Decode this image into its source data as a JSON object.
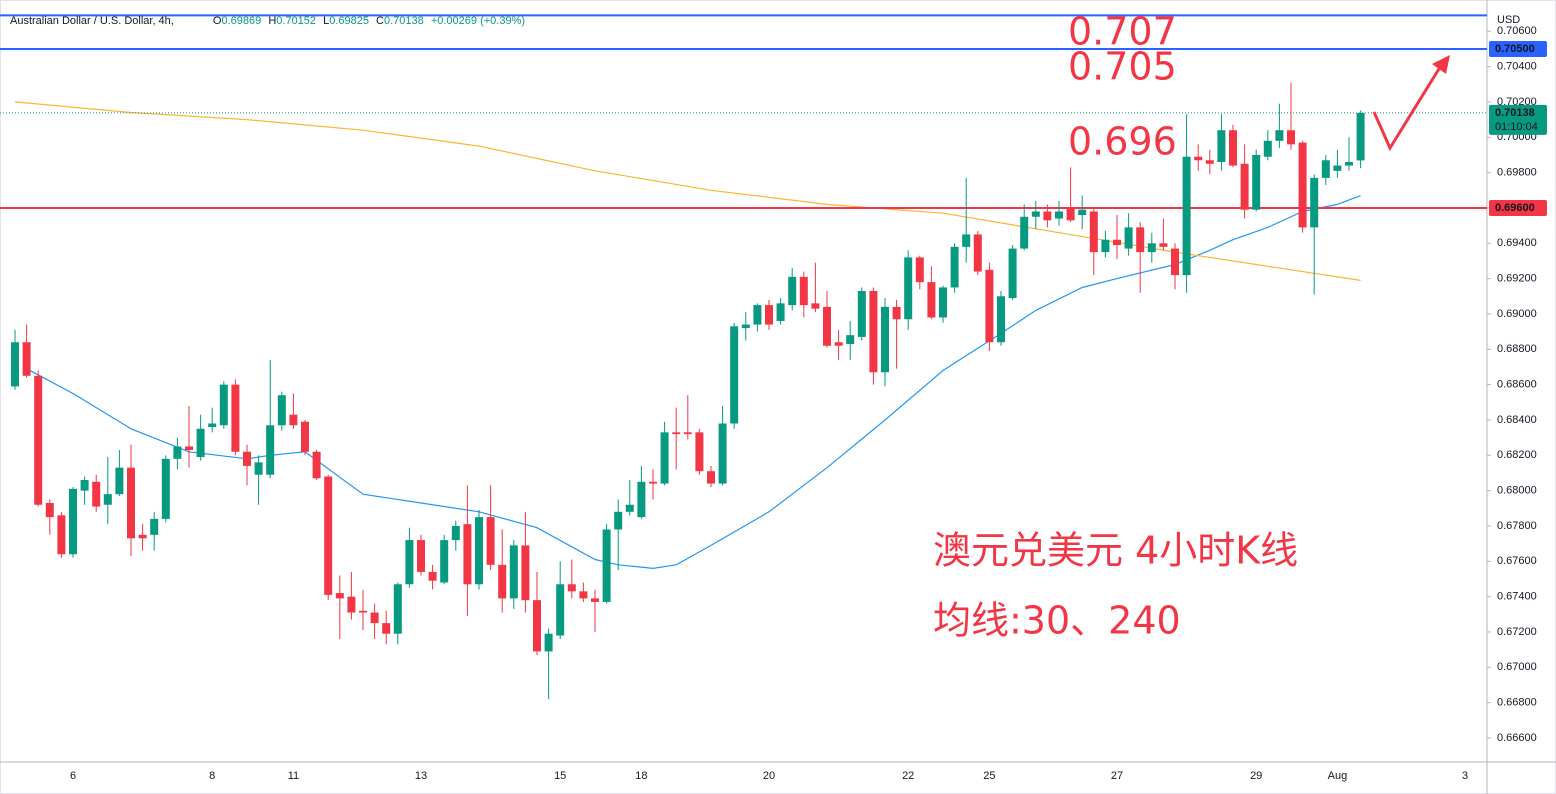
{
  "chart_data": {
    "type": "candlestick",
    "symbol": "Australian Dollar / U.S. Dollar, 4h,",
    "ohlc_labels": [
      "O",
      "H",
      "L",
      "C"
    ],
    "change": "+0.00269 (+0.39%)",
    "currency": "USD",
    "annotations": [
      "0.707",
      "0.705",
      "0.696",
      "澳元兑美元 4小时K线",
      "均线:30、240"
    ],
    "up_color": "#089981",
    "down_color": "#f23645",
    "categories": [
      null,
      null,
      null,
      null,
      null,
      "6",
      null,
      null,
      null,
      null,
      null,
      null,
      null,
      null,
      null,
      null,
      null,
      "8",
      null,
      null,
      null,
      null,
      null,
      null,
      "11",
      null,
      null,
      null,
      null,
      null,
      null,
      null,
      null,
      null,
      null,
      "13",
      null,
      null,
      null,
      null,
      null,
      null,
      null,
      null,
      null,
      null,
      null,
      "15",
      null,
      null,
      null,
      null,
      null,
      null,
      "18",
      null,
      null,
      null,
      null,
      null,
      null,
      null,
      null,
      null,
      null,
      "20",
      null,
      null,
      null,
      null,
      null,
      null,
      null,
      null,
      null,
      null,
      null,
      "22",
      null,
      null,
      null,
      null,
      null,
      null,
      "25",
      null,
      null,
      null,
      null,
      null,
      null,
      null,
      null,
      null,
      null,
      "27",
      null,
      null,
      null,
      null,
      null,
      null,
      null,
      null,
      null,
      null,
      null,
      "29",
      null,
      null,
      null,
      null,
      null,
      null,
      "Aug",
      null,
      null,
      null,
      null,
      null,
      null,
      null,
      null,
      null,
      null,
      "3"
    ],
    "open": [
      0.6859,
      0.6884,
      0.6865,
      0.6793,
      0.6786,
      0.6764,
      0.68,
      0.6805,
      0.6792,
      0.6798,
      0.6813,
      0.6775,
      0.6775,
      0.6784,
      0.6818,
      0.6825,
      0.6819,
      0.6836,
      0.6837,
      0.686,
      0.6822,
      0.6809,
      0.6809,
      0.6837,
      0.6843,
      0.6839,
      0.6822,
      0.6808,
      0.6742,
      0.674,
      0.6732,
      0.6731,
      0.6725,
      0.6719,
      0.6747,
      0.6772,
      0.6754,
      0.6748,
      0.6772,
      0.6781,
      0.6747,
      0.6785,
      0.6758,
      0.6739,
      0.6769,
      0.6738,
      0.6709,
      0.6718,
      0.6747,
      0.6743,
      0.6739,
      0.6737,
      0.6778,
      0.6788,
      0.6785,
      0.6805,
      0.6804,
      0.6833,
      0.6833,
      0.6833,
      0.6811,
      0.6804,
      0.6838,
      0.6892,
      0.6894,
      0.6905,
      0.6896,
      0.6905,
      0.6921,
      0.6906,
      0.6904,
      0.6884,
      0.6883,
      0.6887,
      0.6913,
      0.6867,
      0.6904,
      0.6897,
      0.6932,
      0.6918,
      0.6898,
      0.6915,
      0.6938,
      0.6945,
      0.6925,
      0.6884,
      0.6909,
      0.6937,
      0.6955,
      0.6958,
      0.6954,
      0.696,
      0.6956,
      0.6958,
      0.6935,
      0.6942,
      0.6937,
      0.6949,
      0.6935,
      0.694,
      0.6937,
      0.6922,
      0.6989,
      0.6987,
      0.6986,
      0.7004,
      0.6985,
      0.6959,
      0.6989,
      0.6998,
      0.7004,
      0.6997,
      0.6949,
      0.6977,
      0.6981,
      0.6984,
      0.69869,
      null,
      null,
      null,
      null,
      null,
      null,
      null,
      null,
      null
    ],
    "high": [
      0.6891,
      0.6894,
      0.6868,
      0.6795,
      0.6788,
      0.6802,
      0.6808,
      0.6809,
      0.6819,
      0.6823,
      0.6826,
      0.6781,
      0.6788,
      0.682,
      0.683,
      0.6848,
      0.6843,
      0.6847,
      0.6862,
      0.6863,
      0.6826,
      0.682,
      0.6874,
      0.6856,
      0.6855,
      0.684,
      0.6823,
      0.6809,
      0.6752,
      0.6754,
      0.6744,
      0.6736,
      0.6732,
      0.6748,
      0.6779,
      0.6775,
      0.6758,
      0.6775,
      0.6783,
      0.6803,
      0.6789,
      0.6803,
      0.6778,
      0.6772,
      0.6788,
      0.6754,
      0.6722,
      0.676,
      0.6761,
      0.6748,
      0.6744,
      0.6781,
      0.6795,
      0.6806,
      0.6814,
      0.6812,
      0.6839,
      0.6847,
      0.6854,
      0.6835,
      0.6814,
      0.6848,
      0.6895,
      0.6901,
      0.6906,
      0.6908,
      0.6909,
      0.6926,
      0.6924,
      0.6929,
      0.6913,
      0.6891,
      0.6896,
      0.6915,
      0.6915,
      0.6909,
      0.6908,
      0.6936,
      0.6933,
      0.6927,
      0.6916,
      0.694,
      0.6977,
      0.6947,
      0.6929,
      0.6913,
      0.6939,
      0.6962,
      0.6964,
      0.6962,
      0.6964,
      0.6983,
      0.6967,
      0.696,
      0.6947,
      0.6956,
      0.6957,
      0.6952,
      0.6946,
      0.6954,
      0.694,
      0.7013,
      0.6996,
      0.6993,
      0.7013,
      0.7007,
      0.6996,
      0.6993,
      0.7004,
      0.7019,
      0.7031,
      0.6998,
      0.6979,
      0.699,
      0.6993,
      0.7,
      0.70152,
      null,
      null,
      null,
      null,
      null,
      null,
      null,
      null,
      null
    ],
    "low": [
      0.6857,
      0.6864,
      0.6791,
      0.6775,
      0.6762,
      0.6762,
      0.6792,
      0.6788,
      0.6781,
      0.6797,
      0.6763,
      0.6766,
      0.6766,
      0.6782,
      0.6812,
      0.6813,
      0.6817,
      0.6833,
      0.6835,
      0.682,
      0.6803,
      0.6792,
      0.6807,
      0.6834,
      0.6835,
      0.682,
      0.6806,
      0.6738,
      0.6716,
      0.6727,
      0.6721,
      0.6716,
      0.6713,
      0.6713,
      0.6745,
      0.6752,
      0.6744,
      0.6747,
      0.6766,
      0.6729,
      0.6744,
      0.6755,
      0.6731,
      0.6733,
      0.6731,
      0.6707,
      0.6682,
      0.6716,
      0.6739,
      0.6737,
      0.672,
      0.6736,
      0.6755,
      0.6786,
      0.6784,
      0.6795,
      0.6803,
      0.6812,
      0.6829,
      0.6809,
      0.6802,
      0.6803,
      0.6835,
      0.6885,
      0.689,
      0.6891,
      0.6894,
      0.6902,
      0.6898,
      0.6901,
      0.6881,
      0.6874,
      0.6874,
      0.6885,
      0.686,
      0.6859,
      0.6869,
      0.6891,
      0.6914,
      0.6897,
      0.6895,
      0.6912,
      0.6929,
      0.6922,
      0.6879,
      0.6882,
      0.6908,
      0.6936,
      0.6948,
      0.6949,
      0.695,
      0.6952,
      0.6948,
      0.6922,
      0.6932,
      0.6931,
      0.6933,
      0.6912,
      0.6929,
      0.6936,
      0.6914,
      0.6912,
      0.6981,
      0.6979,
      0.6981,
      0.6983,
      0.6954,
      0.6958,
      0.6987,
      0.6994,
      0.6993,
      0.6946,
      0.6911,
      0.6973,
      0.6977,
      0.6981,
      0.69825,
      null,
      null,
      null,
      null,
      null,
      null,
      null,
      null,
      null
    ],
    "close": [
      0.6884,
      0.6865,
      0.6792,
      0.6785,
      0.6764,
      0.6801,
      0.6806,
      0.6791,
      0.6798,
      0.6813,
      0.6773,
      0.6773,
      0.6784,
      0.6818,
      0.6825,
      0.6823,
      0.6835,
      0.6838,
      0.686,
      0.6822,
      0.6814,
      0.6816,
      0.6837,
      0.6854,
      0.6837,
      0.6822,
      0.6807,
      0.6741,
      0.6739,
      0.6731,
      0.6731,
      0.6725,
      0.6719,
      0.6747,
      0.6772,
      0.6754,
      0.6749,
      0.6772,
      0.678,
      0.6747,
      0.6785,
      0.6758,
      0.6739,
      0.6769,
      0.6738,
      0.6709,
      0.6719,
      0.6747,
      0.6743,
      0.6739,
      0.6737,
      0.6778,
      0.6788,
      0.6792,
      0.6805,
      0.6804,
      0.6833,
      0.6832,
      0.6832,
      0.6811,
      0.6804,
      0.6838,
      0.6893,
      0.6894,
      0.6905,
      0.6894,
      0.6906,
      0.6921,
      0.6905,
      0.6903,
      0.6882,
      0.6882,
      0.6888,
      0.6913,
      0.6867,
      0.6904,
      0.6897,
      0.6932,
      0.6918,
      0.6898,
      0.6915,
      0.6938,
      0.6945,
      0.6924,
      0.6884,
      0.691,
      0.6937,
      0.6955,
      0.6958,
      0.6953,
      0.6958,
      0.6953,
      0.6959,
      0.6935,
      0.6942,
      0.6939,
      0.6949,
      0.6935,
      0.694,
      0.6938,
      0.6922,
      0.6989,
      0.6987,
      0.6985,
      0.7004,
      0.6984,
      0.6959,
      0.699,
      0.6998,
      0.7004,
      0.6996,
      0.6949,
      0.6977,
      0.6987,
      0.6984,
      0.6986,
      0.70138,
      null,
      null,
      null,
      null,
      null,
      null,
      null,
      null,
      null
    ],
    "ma_lines": [
      {
        "color": "#2196f3",
        "x": [
          1,
          5,
          10,
          15,
          20,
          22,
          25,
          30,
          35,
          40,
          45,
          50,
          52,
          55,
          57,
          60,
          65,
          70,
          75,
          80,
          85,
          88,
          92,
          95,
          100,
          103,
          105,
          108,
          111,
          114,
          116
        ],
        "values": [
          0.6869,
          0.6855,
          0.6835,
          0.6822,
          0.6818,
          0.682,
          0.6822,
          0.6798,
          0.6793,
          0.6788,
          0.6779,
          0.6761,
          0.6758,
          0.6756,
          0.6758,
          0.6769,
          0.6788,
          0.6813,
          0.684,
          0.6868,
          0.6889,
          0.6902,
          0.6915,
          0.692,
          0.6928,
          0.6936,
          0.6942,
          0.6949,
          0.6958,
          0.6962,
          0.6967
        ]
      },
      {
        "color": "#f7b733",
        "x": [
          0,
          10,
          20,
          30,
          40,
          50,
          60,
          70,
          80,
          90,
          100,
          110,
          116
        ],
        "values": [
          0.702,
          0.7014,
          0.701,
          0.7004,
          0.6995,
          0.6981,
          0.697,
          0.6962,
          0.6957,
          0.6946,
          0.6935,
          0.6925,
          0.6919
        ]
      }
    ],
    "hlines": [
      {
        "value": 0.7069,
        "color": "#2962ff"
      },
      {
        "value": 0.705,
        "label": "0.70500",
        "color": "#2962ff"
      },
      {
        "value": 0.696,
        "label": "0.69600",
        "color": "#f23645"
      }
    ],
    "last_price": {
      "value": 0.70138,
      "label": "0.70138",
      "countdown": "01:10:04",
      "color": "#089981"
    },
    "ylim": [
      0.66464,
      0.70777
    ],
    "yticks": [
      {
        "value": 0.666,
        "label": "0.66600"
      },
      {
        "value": 0.668,
        "label": "0.66800"
      },
      {
        "value": 0.67,
        "label": "0.67000"
      },
      {
        "value": 0.672,
        "label": "0.67200"
      },
      {
        "value": 0.674,
        "label": "0.67400"
      },
      {
        "value": 0.676,
        "label": "0.67600"
      },
      {
        "value": 0.678,
        "label": "0.67800"
      },
      {
        "value": 0.68,
        "label": "0.68000"
      },
      {
        "value": 0.682,
        "label": "0.68200"
      },
      {
        "value": 0.684,
        "label": "0.68400"
      },
      {
        "value": 0.686,
        "label": "0.68600"
      },
      {
        "value": 0.688,
        "label": "0.68800"
      },
      {
        "value": 0.69,
        "label": "0.69000"
      },
      {
        "value": 0.692,
        "label": "0.69200"
      },
      {
        "value": 0.694,
        "label": "0.69400"
      },
      {
        "value": 0.696,
        "label": "0.69600"
      },
      {
        "value": 0.698,
        "label": "0.69800"
      },
      {
        "value": 0.7,
        "label": "0.70000"
      },
      {
        "value": 0.702,
        "label": "0.70200"
      },
      {
        "value": 0.704,
        "label": "0.70400"
      },
      {
        "value": 0.706,
        "label": "0.70600"
      }
    ],
    "grid": false
  }
}
